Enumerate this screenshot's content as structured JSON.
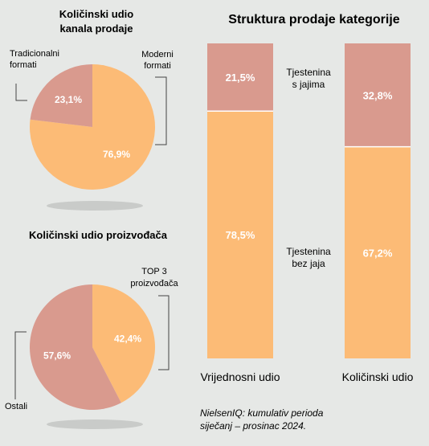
{
  "colors": {
    "peach": "#fcbb76",
    "rose": "#d99a8e",
    "shadow": "#c9cbc9",
    "background": "#e6e8e6"
  },
  "chart_data": [
    {
      "type": "pie",
      "title_lines": [
        "Količinski udio",
        "kanala prodaje"
      ],
      "slices": [
        {
          "label": "Moderni formati",
          "label_lines": [
            "Moderni",
            "formati"
          ],
          "value": 76.9,
          "value_label": "76,9%",
          "color": "#fcbb76"
        },
        {
          "label": "Tradicionalni formati",
          "label_lines": [
            "Tradicionalni",
            "formati"
          ],
          "value": 23.1,
          "value_label": "23,1%",
          "color": "#d99a8e"
        }
      ]
    },
    {
      "type": "pie",
      "title_lines": [
        "Količinski udio proizvođača"
      ],
      "slices": [
        {
          "label": "TOP 3 proizvođača",
          "label_lines": [
            "TOP 3",
            "proizvođača"
          ],
          "value": 42.4,
          "value_label": "42,4%",
          "color": "#fcbb76"
        },
        {
          "label": "Ostali",
          "label_lines": [
            "Ostali"
          ],
          "value": 57.6,
          "value_label": "57,6%",
          "color": "#d99a8e"
        }
      ]
    },
    {
      "type": "bar",
      "stacked": true,
      "normalized": true,
      "title": "Struktura prodaje kategorije",
      "categories": [
        "Vrijednosni udio",
        "Količinski udio"
      ],
      "ylim": [
        0,
        100
      ],
      "series": [
        {
          "name": "Tjestenina s jajima",
          "name_lines": [
            "Tjestenina",
            "s jajima"
          ],
          "values": [
            21.5,
            32.8
          ],
          "value_labels": [
            "21,5%",
            "32,8%"
          ],
          "color": "#d99a8e"
        },
        {
          "name": "Tjestenina bez jaja",
          "name_lines": [
            "Tjestenina",
            "bez jaja"
          ],
          "values": [
            78.5,
            67.2
          ],
          "value_labels": [
            "78,5%",
            "67,2%"
          ],
          "color": "#fcbb76"
        }
      ]
    }
  ],
  "source_lines": [
    "NielsenIQ: kumulativ perioda",
    "siječanj – prosinac 2024."
  ]
}
